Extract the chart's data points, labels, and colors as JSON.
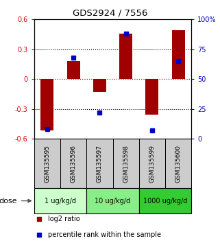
{
  "title": "GDS2924 / 7556",
  "samples": [
    "GSM135595",
    "GSM135596",
    "GSM135597",
    "GSM135598",
    "GSM135599",
    "GSM135600"
  ],
  "log2_ratios": [
    -0.52,
    0.18,
    -0.13,
    0.46,
    -0.36,
    0.49
  ],
  "percentile_ranks": [
    8,
    68,
    22,
    88,
    7,
    65
  ],
  "bar_color": "#a00000",
  "dot_color": "#0000cc",
  "ylim_left": [
    -0.6,
    0.6
  ],
  "ylim_right": [
    0,
    100
  ],
  "yticks_left": [
    -0.6,
    -0.3,
    0,
    0.3,
    0.6
  ],
  "yticks_right": [
    0,
    25,
    50,
    75,
    100
  ],
  "yticklabels_right": [
    "0",
    "25",
    "50",
    "75",
    "100%"
  ],
  "hlines_black": [
    0.3,
    -0.3
  ],
  "zero_line_color": "#cc0000",
  "groups": [
    {
      "label": "1 ug/kg/d",
      "color": "#ccffcc",
      "start": 0,
      "end": 1
    },
    {
      "label": "10 ug/kg/d",
      "color": "#88ee88",
      "start": 2,
      "end": 3
    },
    {
      "label": "1000 ug/kg/d",
      "color": "#33cc33",
      "start": 4,
      "end": 5
    }
  ],
  "dose_label": "dose",
  "legend_bar_label": "log2 ratio",
  "legend_dot_label": "percentile rank within the sample",
  "tick_color_left": "#cc0000",
  "tick_color_right": "#0000bb",
  "bar_width": 0.5,
  "sample_bg_color": "#cccccc"
}
